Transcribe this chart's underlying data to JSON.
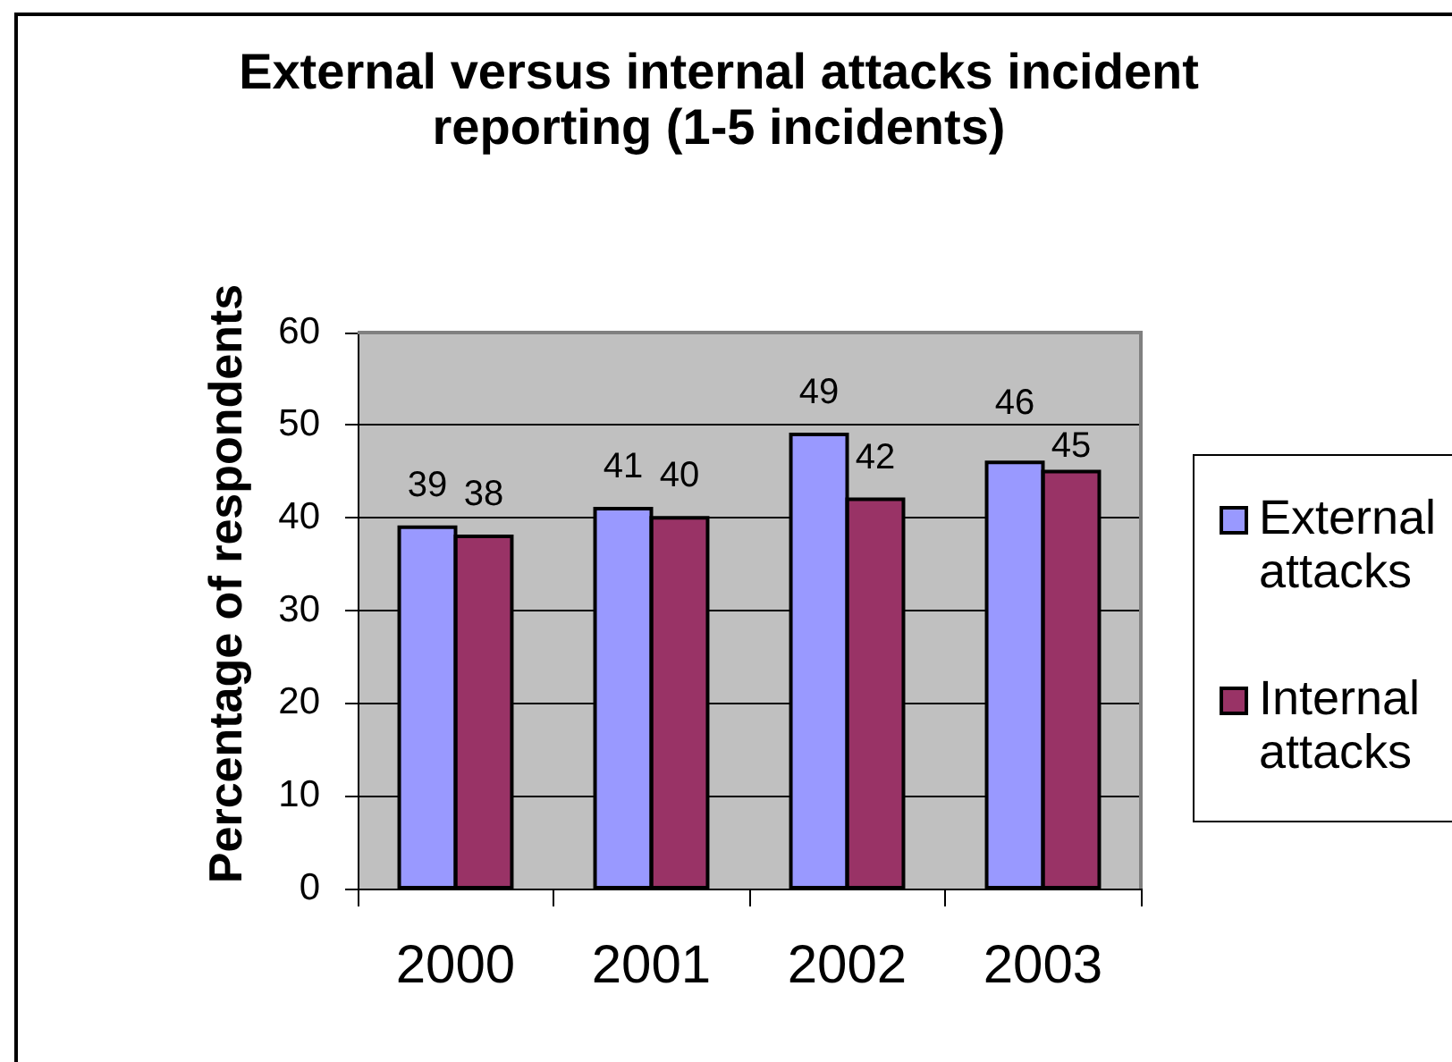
{
  "chart_data": {
    "type": "bar",
    "title": "External versus internal attacks incident reporting (1-5 incidents)",
    "ylabel": "Percentage of respondents",
    "categories": [
      "2000",
      "2001",
      "2002",
      "2003"
    ],
    "series": [
      {
        "name": "External attacks",
        "color": "#9999ff",
        "values": [
          39,
          41,
          49,
          46
        ]
      },
      {
        "name": "Internal attacks",
        "color": "#993366",
        "values": [
          38,
          40,
          42,
          45
        ]
      }
    ],
    "ylim": [
      0,
      60
    ],
    "yticks": [
      0,
      10,
      20,
      30,
      40,
      50,
      60
    ],
    "grid": "y",
    "legend": "right",
    "data_labels": true
  }
}
